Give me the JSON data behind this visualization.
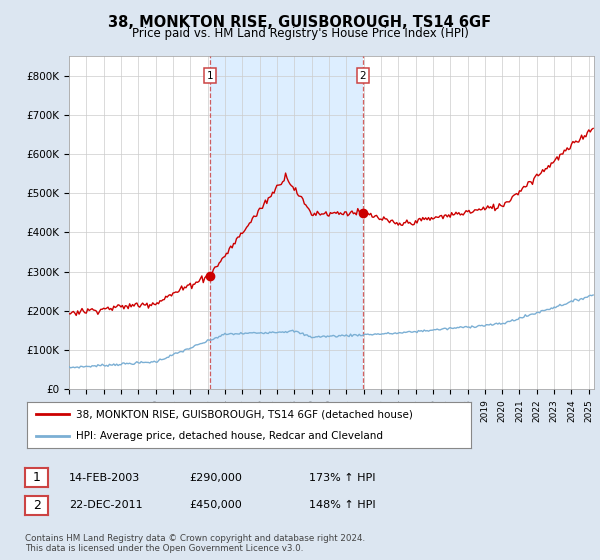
{
  "title": "38, MONKTON RISE, GUISBOROUGH, TS14 6GF",
  "subtitle": "Price paid vs. HM Land Registry's House Price Index (HPI)",
  "legend_line1": "38, MONKTON RISE, GUISBOROUGH, TS14 6GF (detached house)",
  "legend_line2": "HPI: Average price, detached house, Redcar and Cleveland",
  "annotation1_date": "14-FEB-2003",
  "annotation1_price": "£290,000",
  "annotation1_hpi": "173% ↑ HPI",
  "annotation2_date": "22-DEC-2011",
  "annotation2_price": "£450,000",
  "annotation2_hpi": "148% ↑ HPI",
  "footer": "Contains HM Land Registry data © Crown copyright and database right 2024.\nThis data is licensed under the Open Government Licence v3.0.",
  "sale1_year": 2003.12,
  "sale1_value": 290000,
  "sale2_year": 2011.97,
  "sale2_value": 450000,
  "hpi_color": "#7bafd4",
  "price_color": "#cc0000",
  "background_color": "#dce6f1",
  "plot_bg_color": "#ffffff",
  "shade_color": "#ddeeff",
  "ylim": [
    0,
    850000
  ],
  "xlim_start": 1995.0,
  "xlim_end": 2025.3
}
